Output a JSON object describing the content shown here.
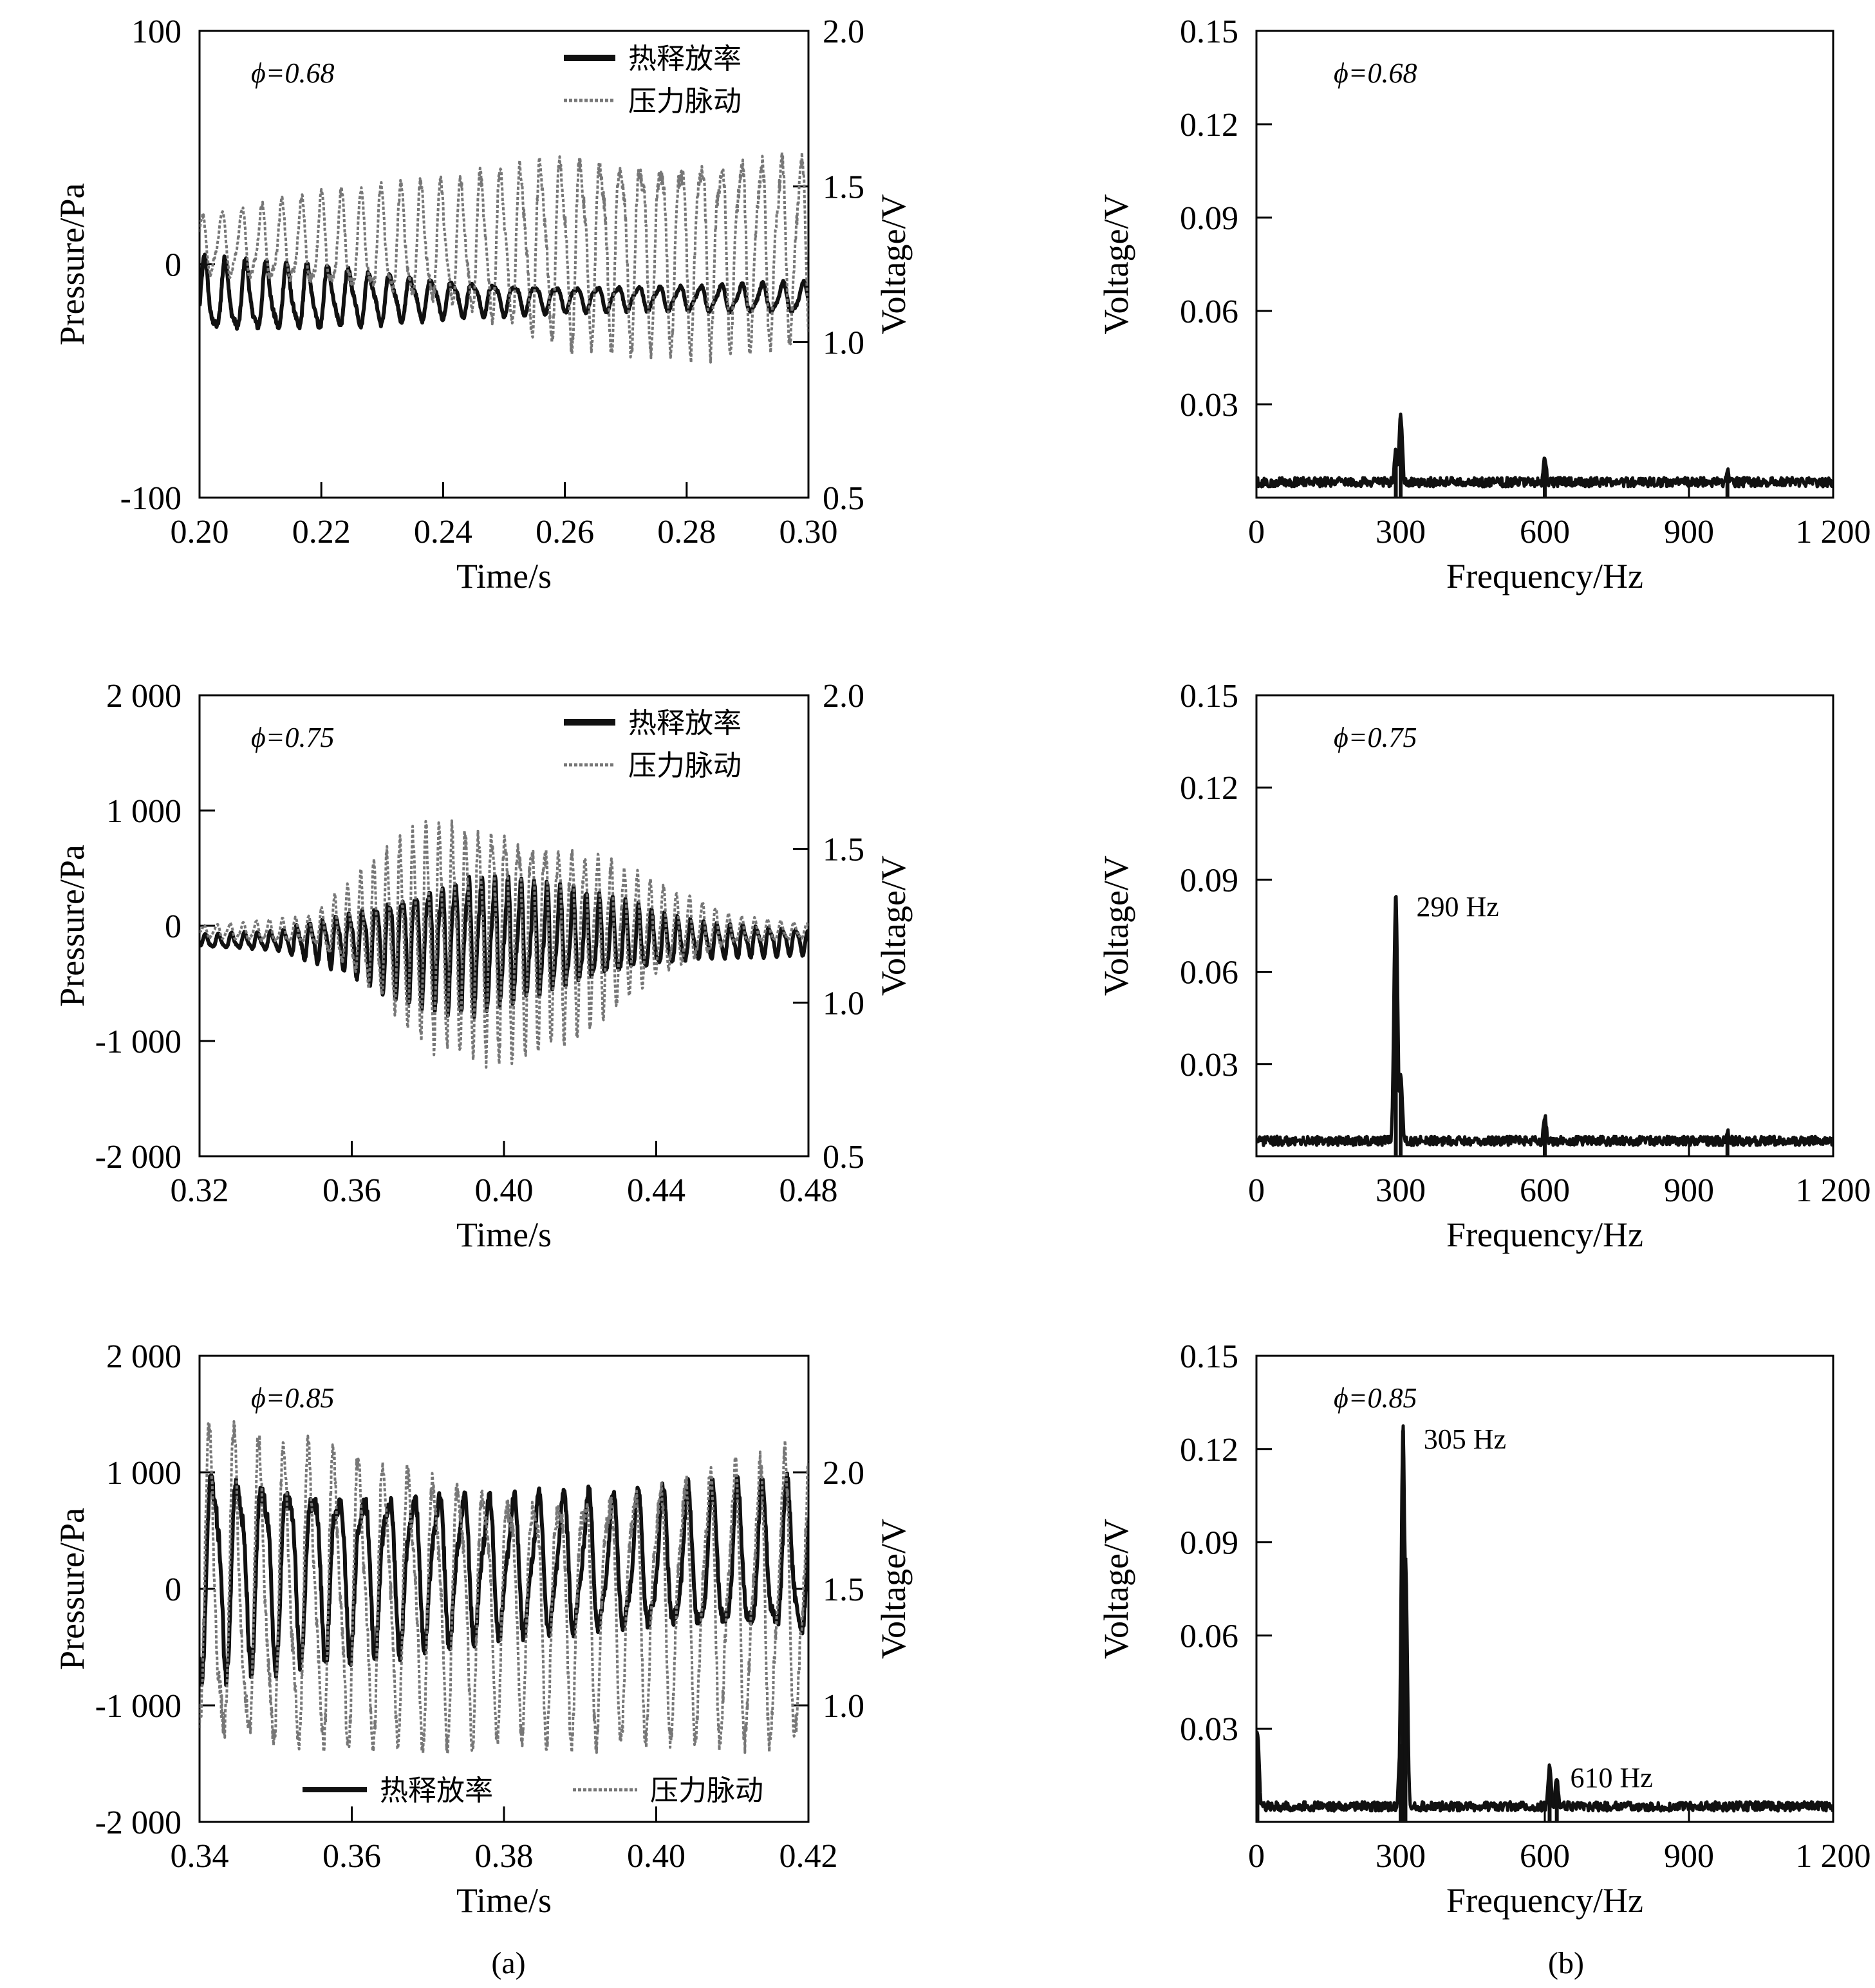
{
  "colors": {
    "heat": "#111111",
    "pressure": "#777777",
    "spectrum": "#111111",
    "axis": "#000000",
    "background": "#ffffff"
  },
  "captions": {
    "a": "(a)",
    "b": "(b)"
  },
  "chart_data": [
    {
      "type": "line",
      "phi_label": "ϕ=0.68",
      "xlabel": "Time/s",
      "ylabel": "Pressure/Pa",
      "y2label": "Voltage/V",
      "xlim": [
        0.2,
        0.3
      ],
      "ylim": [
        -100,
        100
      ],
      "y2lim": [
        0.5,
        2.0
      ],
      "xticks": [
        "0.20",
        "0.22",
        "0.24",
        "0.26",
        "0.28",
        "0.30"
      ],
      "yticks": [
        "100",
        "0",
        "-100"
      ],
      "y2ticks": [
        "2.0",
        "1.5",
        "1.0",
        "0.5"
      ],
      "legend": {
        "position": "top-right",
        "entries": [
          "热释放率",
          "压力脉动"
        ]
      },
      "series": [
        {
          "name": "热释放率",
          "axis": "y2",
          "style": "solid",
          "frequency_hz": 295,
          "offset": 1.14,
          "amplitude": [
            [
              0.2,
              0.12
            ],
            [
              0.22,
              0.1
            ],
            [
              0.24,
              0.06
            ],
            [
              0.26,
              0.04
            ],
            [
              0.28,
              0.04
            ],
            [
              0.3,
              0.05
            ]
          ]
        },
        {
          "name": "压力脉动",
          "axis": "y",
          "style": "dotted",
          "frequency_hz": 305,
          "offset": 8,
          "amplitude": [
            [
              0.2,
              12
            ],
            [
              0.22,
              20
            ],
            [
              0.24,
              26
            ],
            [
              0.26,
              40
            ],
            [
              0.28,
              42
            ],
            [
              0.3,
              40
            ]
          ]
        }
      ]
    },
    {
      "type": "line",
      "phi_label": "ϕ=0.75",
      "xlabel": "Time/s",
      "ylabel": "Pressure/Pa",
      "y2label": "Voltage/V",
      "xlim": [
        0.32,
        0.48
      ],
      "ylim": [
        -2000,
        2000
      ],
      "y2lim": [
        0.5,
        2.0
      ],
      "xticks": [
        "0.32",
        "0.36",
        "0.40",
        "0.44",
        "0.48"
      ],
      "yticks": [
        "2 000",
        "1 000",
        "0",
        "-1 000",
        "-2 000"
      ],
      "y2ticks": [
        "2.0",
        "1.5",
        "1.0",
        "0.5"
      ],
      "legend": {
        "position": "top-right",
        "entries": [
          "热释放率",
          "压力脉动"
        ]
      },
      "series": [
        {
          "name": "热释放率",
          "axis": "y2",
          "style": "solid",
          "frequency_hz": 290,
          "offset": 1.2,
          "amplitude": [
            [
              0.32,
              0.02
            ],
            [
              0.34,
              0.03
            ],
            [
              0.36,
              0.1
            ],
            [
              0.37,
              0.16
            ],
            [
              0.39,
              0.22
            ],
            [
              0.41,
              0.18
            ],
            [
              0.43,
              0.12
            ],
            [
              0.45,
              0.06
            ],
            [
              0.48,
              0.04
            ]
          ]
        },
        {
          "name": "压力脉动",
          "axis": "y",
          "style": "dotted",
          "frequency_hz": 290,
          "offset": -50,
          "amplitude": [
            [
              0.32,
              50
            ],
            [
              0.35,
              120
            ],
            [
              0.36,
              400
            ],
            [
              0.38,
              950
            ],
            [
              0.4,
              1000
            ],
            [
              0.42,
              800
            ],
            [
              0.44,
              400
            ],
            [
              0.46,
              120
            ],
            [
              0.48,
              60
            ]
          ]
        }
      ]
    },
    {
      "type": "line",
      "phi_label": "ϕ=0.85",
      "xlabel": "Time/s",
      "ylabel": "Pressure/Pa",
      "y2label": "Voltage/V",
      "xlim": [
        0.34,
        0.42
      ],
      "ylim": [
        -2000,
        2000
      ],
      "y2lim": [
        0.5,
        2.5
      ],
      "xticks": [
        "0.34",
        "0.36",
        "0.38",
        "0.40",
        "0.42"
      ],
      "yticks": [
        "2 000",
        "1 000",
        "0",
        "-1 000",
        "-2 000"
      ],
      "y2ticks": [
        "2.0",
        "1.5",
        "1.0"
      ],
      "legend": {
        "position": "bottom",
        "entries": [
          "热释放率",
          "压力脉动"
        ]
      },
      "series": [
        {
          "name": "热释放率",
          "axis": "y2",
          "style": "solid",
          "frequency_hz": 305,
          "offset": 1.6,
          "amplitude": [
            [
              0.34,
              0.45
            ],
            [
              0.36,
              0.36
            ],
            [
              0.38,
              0.3
            ],
            [
              0.4,
              0.3
            ],
            [
              0.42,
              0.34
            ]
          ]
        },
        {
          "name": "压力脉动",
          "axis": "y",
          "style": "dotted",
          "frequency_hz": 305,
          "offset": -100,
          "amplitude": [
            [
              0.34,
              1350
            ],
            [
              0.36,
              1250
            ],
            [
              0.38,
              1050
            ],
            [
              0.4,
              1100
            ],
            [
              0.42,
              1250
            ]
          ]
        }
      ]
    },
    {
      "type": "line",
      "phi_label": "ϕ=0.68",
      "xlabel": "Frequency/Hz",
      "ylabel": "Voltage/V",
      "xlim": [
        0,
        1200
      ],
      "ylim": [
        0,
        0.15
      ],
      "xticks": [
        "0",
        "300",
        "600",
        "900",
        "1 200"
      ],
      "yticks": [
        "0.15",
        "0.12",
        "0.09",
        "0.06",
        "0.03"
      ],
      "annotations": [],
      "peaks": [
        {
          "x": 300,
          "y": 0.025
        },
        {
          "x": 290,
          "y": 0.014
        },
        {
          "x": 600,
          "y": 0.012
        },
        {
          "x": 980,
          "y": 0.008
        }
      ]
    },
    {
      "type": "line",
      "phi_label": "ϕ=0.75",
      "xlabel": "Frequency/Hz",
      "ylabel": "Voltage/V",
      "xlim": [
        0,
        1200
      ],
      "ylim": [
        0,
        0.15
      ],
      "xticks": [
        "0",
        "300",
        "600",
        "900",
        "1 200"
      ],
      "yticks": [
        "0.15",
        "0.12",
        "0.09",
        "0.06",
        "0.03"
      ],
      "annotations": [
        {
          "text": "290 Hz",
          "x": 290,
          "y": 0.084
        }
      ],
      "peaks": [
        {
          "x": 290,
          "y": 0.084
        },
        {
          "x": 300,
          "y": 0.025
        },
        {
          "x": 600,
          "y": 0.012
        },
        {
          "x": 980,
          "y": 0.007
        }
      ]
    },
    {
      "type": "line",
      "phi_label": "ϕ=0.85",
      "xlabel": "Frequency/Hz",
      "ylabel": "Voltage/V",
      "xlim": [
        0,
        1200
      ],
      "ylim": [
        0,
        0.15
      ],
      "xticks": [
        "0",
        "300",
        "600",
        "900",
        "1 200"
      ],
      "yticks": [
        "0.15",
        "0.12",
        "0.09",
        "0.06",
        "0.03"
      ],
      "annotations": [
        {
          "text": "305 Hz",
          "x": 305,
          "y": 0.126
        },
        {
          "text": "610 Hz",
          "x": 610,
          "y": 0.017
        }
      ],
      "peaks": [
        {
          "x": 305,
          "y": 0.126
        },
        {
          "x": 310,
          "y": 0.085
        },
        {
          "x": 300,
          "y": 0.025
        },
        {
          "x": 610,
          "y": 0.017
        },
        {
          "x": 625,
          "y": 0.013
        },
        {
          "x": 2,
          "y": 0.028
        }
      ]
    }
  ]
}
